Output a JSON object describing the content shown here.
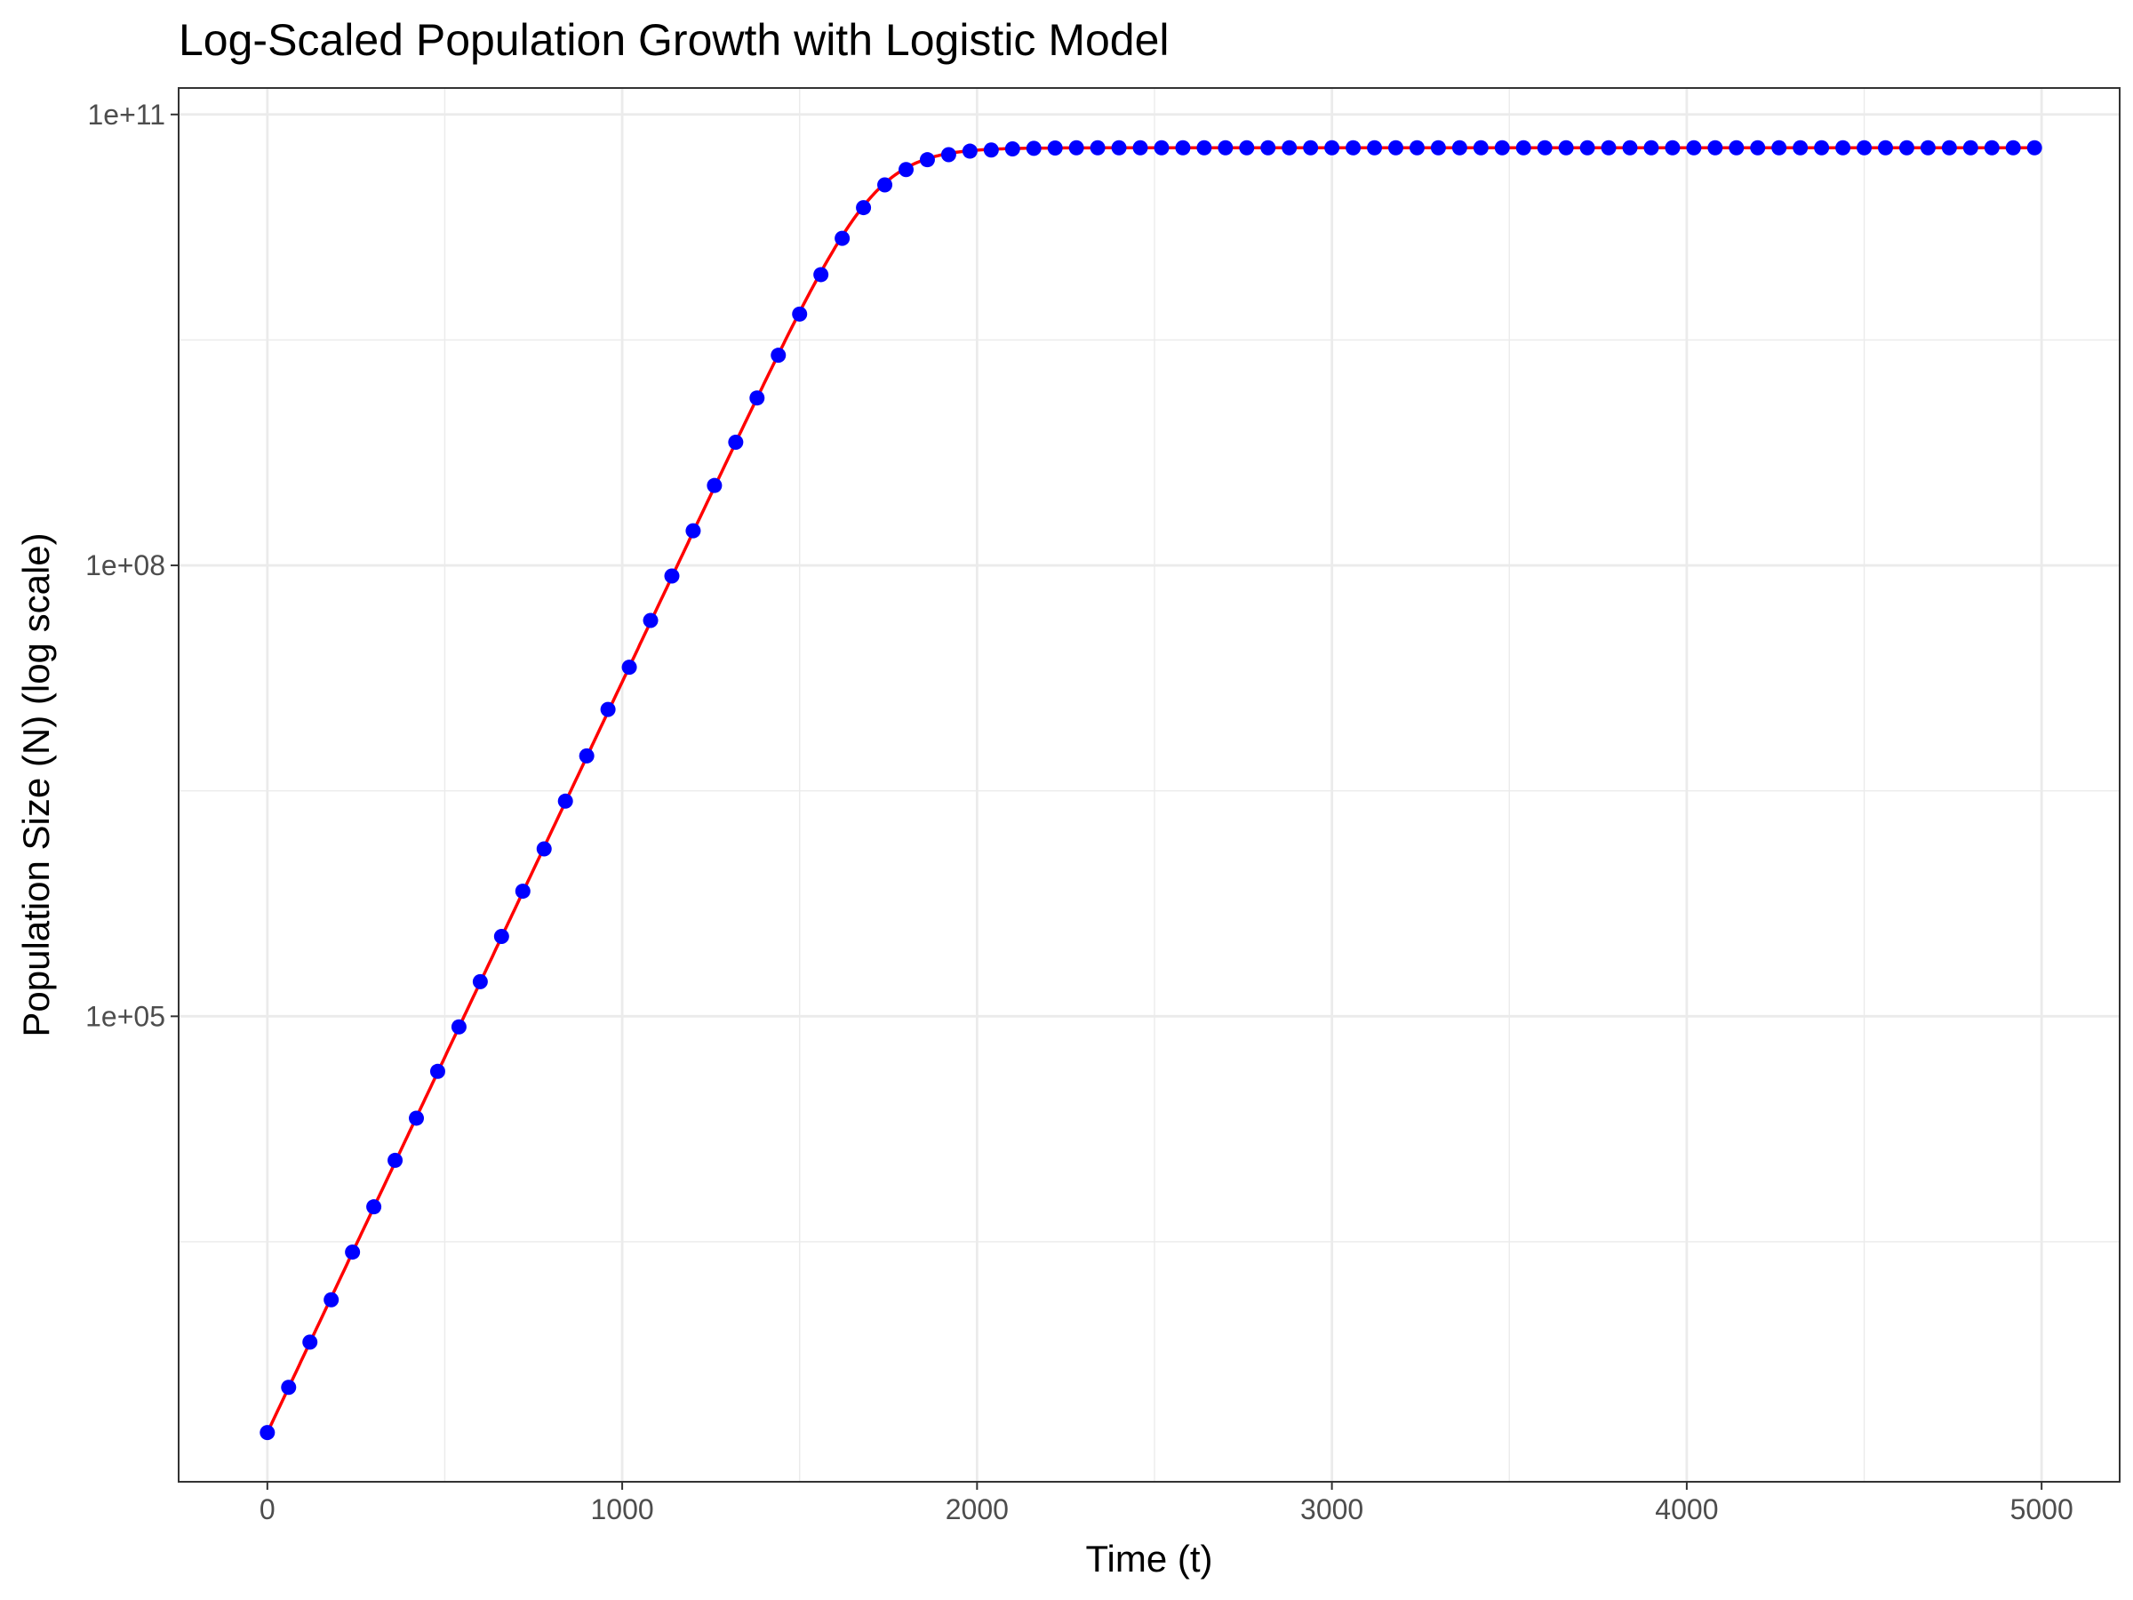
{
  "chart_data": {
    "type": "line",
    "title": "Log-Scaled Population Growth with Logistic Model",
    "xlabel": "Time (t)",
    "ylabel": "Population Size (N) (log scale)",
    "x_scale": "linear",
    "y_scale": "log10",
    "xlim": [
      -250,
      5220
    ],
    "ylim": [
      80,
      150000000000.0
    ],
    "x_ticks": [
      0,
      1000,
      2000,
      3000,
      4000,
      5000
    ],
    "x_tick_labels": [
      "0",
      "1000",
      "2000",
      "3000",
      "4000",
      "5000"
    ],
    "y_ticks": [
      100000.0,
      100000000.0,
      100000000000.0
    ],
    "y_tick_labels": [
      "1e+05",
      "1e+08",
      "1e+11"
    ],
    "grid": true,
    "legend": "none",
    "model": {
      "form": "logistic",
      "N0": 170,
      "K": 60000000000,
      "r": 0.0115
    },
    "series": [
      {
        "type": "points",
        "color": "#0000ff",
        "x": [
          0,
          60,
          120,
          180,
          240,
          300,
          360,
          420,
          480,
          540,
          600,
          660,
          720,
          780,
          840,
          900,
          960,
          1020,
          1080,
          1140,
          1200,
          1260,
          1320,
          1380,
          1440,
          1500,
          1560,
          1620,
          1680,
          1740,
          1800,
          1860,
          1920,
          1980,
          2040,
          2100,
          2160,
          2220,
          2280,
          2340,
          2400,
          2460,
          2520,
          2580,
          2640,
          2700,
          2760,
          2820,
          2880,
          2940,
          3000,
          3060,
          3120,
          3180,
          3240,
          3300,
          3360,
          3420,
          3480,
          3540,
          3600,
          3660,
          3720,
          3780,
          3840,
          3900,
          3960,
          4020,
          4080,
          4140,
          4200,
          4260,
          4320,
          4380,
          4440,
          4500,
          4560,
          4620,
          4680,
          4740,
          4800,
          4860,
          4920,
          4980
        ],
        "values": [
          170,
          340,
          680,
          1300,
          2700,
          5400,
          11000,
          21000,
          43000,
          85000,
          170000,
          340000,
          680000,
          1300000,
          2700000,
          5400000,
          11000000,
          21000000,
          43000000,
          85000000,
          170000000,
          340000000,
          660000000,
          1300000000,
          2500000000,
          4700000000,
          8600000000,
          15000000000,
          24000000000,
          34000000000,
          43000000000,
          50000000000,
          54000000000,
          57000000000,
          58000000000,
          59000000000,
          59500000000,
          59800000000,
          60000000000,
          60000000000,
          60000000000,
          60000000000,
          60000000000,
          60000000000,
          60000000000,
          60000000000,
          60000000000,
          60000000000,
          60000000000,
          60000000000,
          60000000000,
          60000000000,
          60000000000,
          60000000000,
          60000000000,
          60000000000,
          60000000000,
          60000000000,
          60000000000,
          60000000000,
          60000000000,
          60000000000,
          60000000000,
          60000000000,
          60000000000,
          60000000000,
          60000000000,
          60000000000,
          60000000000,
          60000000000,
          60000000000,
          60000000000,
          60000000000,
          60000000000,
          60000000000,
          60000000000,
          60000000000,
          60000000000,
          60000000000,
          60000000000,
          60000000000,
          60000000000,
          60000000000,
          60000000000
        ]
      },
      {
        "type": "line",
        "color": "#ff0000",
        "x_range": [
          0,
          4980
        ]
      }
    ]
  }
}
